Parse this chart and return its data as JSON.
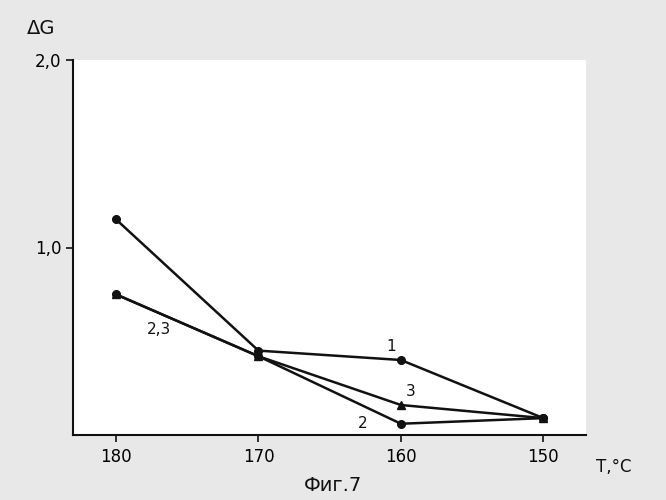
{
  "title": "Фиг.7",
  "ylabel": "ΔG",
  "xlabel": "T,°C",
  "x_values": [
    180,
    170,
    160,
    150
  ],
  "series": [
    {
      "label": "1",
      "y": [
        1.15,
        0.45,
        0.4,
        0.09
      ],
      "color": "#111111",
      "marker": "o",
      "linewidth": 1.8,
      "markersize": 5.5
    },
    {
      "label": "2",
      "y": [
        0.75,
        0.42,
        0.06,
        0.09
      ],
      "color": "#111111",
      "marker": "o",
      "linewidth": 1.8,
      "markersize": 5.5
    },
    {
      "label": "3",
      "y": [
        0.75,
        0.42,
        0.16,
        0.09
      ],
      "color": "#111111",
      "marker": "^",
      "linewidth": 1.8,
      "markersize": 5.5
    }
  ],
  "ylim": [
    0,
    2.0
  ],
  "yticks": [
    1.0,
    2.0
  ],
  "ytick_labels": [
    "1,0",
    "2,0"
  ],
  "xticks": [
    180,
    170,
    160,
    150
  ],
  "xtick_labels": [
    "180",
    "170",
    "160",
    "150"
  ],
  "background_color": "#ffffff",
  "fig_background": "#e8e8e8"
}
